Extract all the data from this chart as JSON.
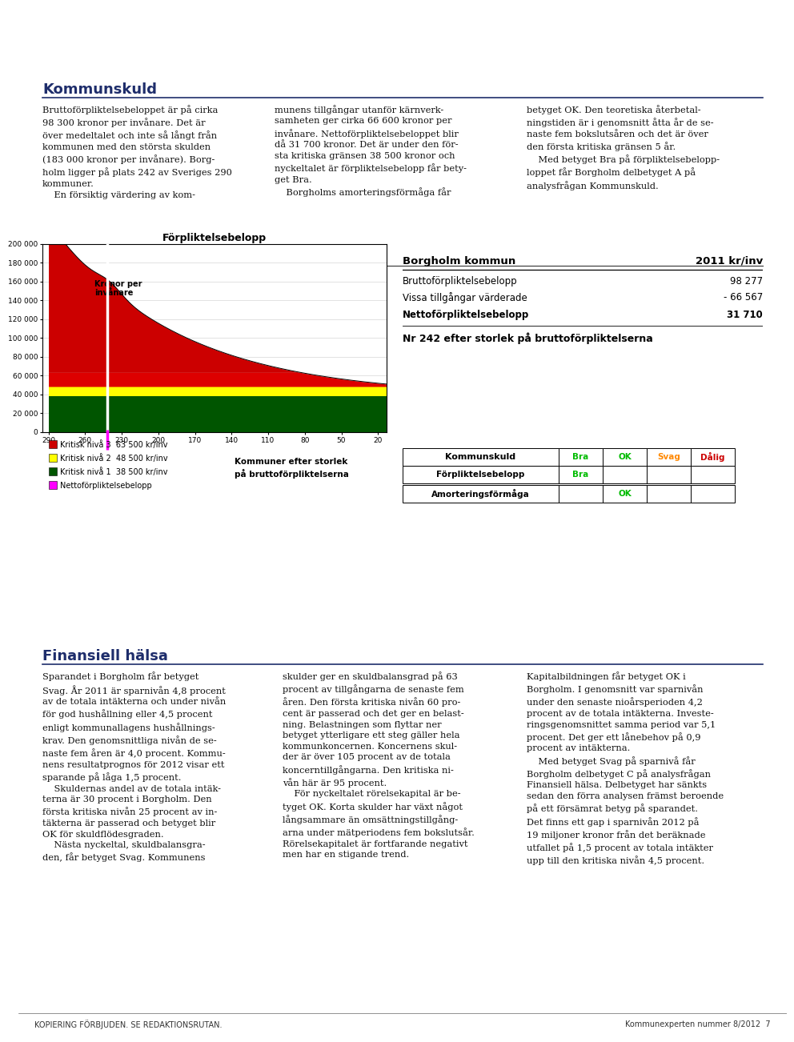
{
  "title": "Borgholm",
  "header_bg": "#1e2d6b",
  "header_text_color": "#ffffff",
  "color_red": "#cc0000",
  "color_yellow": "#ffff00",
  "color_green": "#005500",
  "color_magenta": "#ff00ff",
  "color_black": "#000000",
  "kritisk_niva3": 63500,
  "kritisk_niva2": 48500,
  "kritisk_niva1": 38500,
  "chart_yticks": [
    0,
    20000,
    40000,
    60000,
    80000,
    100000,
    120000,
    140000,
    160000,
    180000,
    200000
  ],
  "chart_xticks": [
    290,
    260,
    230,
    200,
    170,
    140,
    110,
    80,
    50,
    20
  ],
  "borgholm_rank": 242,
  "table_headers": [
    "Borgholm kommun",
    "2011 kr/inv"
  ],
  "table_rows": [
    [
      "Bruttoförpliktelsebelopp",
      "98 277",
      false
    ],
    [
      "Vissa tillgångar värderade",
      "- 66 567",
      false
    ],
    [
      "Nettoförpliktelsebelopp",
      "31 710",
      true
    ]
  ],
  "rank_text": "Nr 242 efter storlek på bruttoförpliktelserna",
  "rating_cols": [
    "Kommunskuld",
    "Bra",
    "OK",
    "Svag",
    "Dålig"
  ],
  "rating_col_colors": [
    "none",
    "#00bb00",
    "#00bb00",
    "#ff6600",
    "#cc0000"
  ],
  "rating_rows": [
    [
      "Förpliktelsebelopp",
      "Bra",
      "",
      "",
      ""
    ],
    [
      "Amorteringsförmåga",
      "",
      "OK",
      "",
      ""
    ]
  ],
  "footer_left": "KOPIERING FÖRBJUDEN. SE REDAKTIONSRUTAN.",
  "footer_right": "Kommunexperten nummer 8/2012  7",
  "divider_color": "#1e2d6b"
}
